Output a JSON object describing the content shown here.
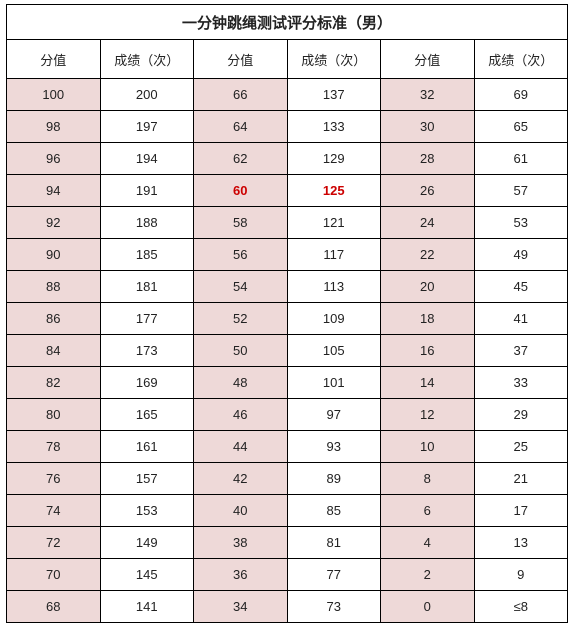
{
  "title": "一分钟跳绳测试评分标准（男）",
  "headers": {
    "score": "分值",
    "perf": "成绩（次）"
  },
  "last_perf_label": "≤8",
  "highlight": {
    "row": 3,
    "group": 1
  },
  "colors": {
    "score_bg": "#eed9d8",
    "perf_bg": "#ffffff",
    "highlight_text": "#cc0000",
    "border": "#000000"
  },
  "rows": [
    [
      [
        100,
        200
      ],
      [
        66,
        137
      ],
      [
        32,
        69
      ]
    ],
    [
      [
        98,
        197
      ],
      [
        64,
        133
      ],
      [
        30,
        65
      ]
    ],
    [
      [
        96,
        194
      ],
      [
        62,
        129
      ],
      [
        28,
        61
      ]
    ],
    [
      [
        94,
        191
      ],
      [
        60,
        125
      ],
      [
        26,
        57
      ]
    ],
    [
      [
        92,
        188
      ],
      [
        58,
        121
      ],
      [
        24,
        53
      ]
    ],
    [
      [
        90,
        185
      ],
      [
        56,
        117
      ],
      [
        22,
        49
      ]
    ],
    [
      [
        88,
        181
      ],
      [
        54,
        113
      ],
      [
        20,
        45
      ]
    ],
    [
      [
        86,
        177
      ],
      [
        52,
        109
      ],
      [
        18,
        41
      ]
    ],
    [
      [
        84,
        173
      ],
      [
        50,
        105
      ],
      [
        16,
        37
      ]
    ],
    [
      [
        82,
        169
      ],
      [
        48,
        101
      ],
      [
        14,
        33
      ]
    ],
    [
      [
        80,
        165
      ],
      [
        46,
        97
      ],
      [
        12,
        29
      ]
    ],
    [
      [
        78,
        161
      ],
      [
        44,
        93
      ],
      [
        10,
        25
      ]
    ],
    [
      [
        76,
        157
      ],
      [
        42,
        89
      ],
      [
        8,
        21
      ]
    ],
    [
      [
        74,
        153
      ],
      [
        40,
        85
      ],
      [
        6,
        17
      ]
    ],
    [
      [
        72,
        149
      ],
      [
        38,
        81
      ],
      [
        4,
        13
      ]
    ],
    [
      [
        70,
        145
      ],
      [
        36,
        77
      ],
      [
        2,
        9
      ]
    ],
    [
      [
        68,
        141
      ],
      [
        34,
        73
      ],
      [
        0,
        null
      ]
    ]
  ]
}
